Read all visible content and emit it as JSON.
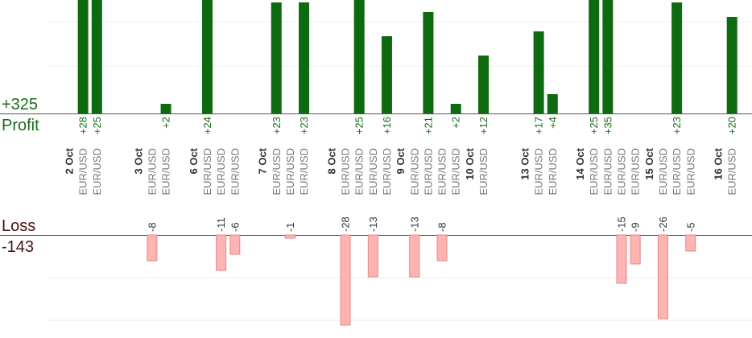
{
  "summary": {
    "profit_total": "+325",
    "profit_label": "Profit",
    "loss_label": "Loss",
    "loss_total": "-143"
  },
  "colors": {
    "profit": "#0e6a0e",
    "loss": "#ffb3b3",
    "profit_text": "#1a6b1a",
    "loss_text": "#4a1010"
  },
  "chart_data": {
    "type": "bar",
    "pair": "EUR/USD",
    "dates": [
      {
        "label": "2 Oct",
        "slot": 0
      },
      {
        "label": "3 Oct",
        "slot": 5
      },
      {
        "label": "6 Oct",
        "slot": 9
      },
      {
        "label": "7 Oct",
        "slot": 14
      },
      {
        "label": "8 Oct",
        "slot": 19
      },
      {
        "label": "9 Oct",
        "slot": 24
      },
      {
        "label": "10 Oct",
        "slot": 29
      },
      {
        "label": "13 Oct",
        "slot": 33
      },
      {
        "label": "14 Oct",
        "slot": 37
      },
      {
        "label": "15 Oct",
        "slot": 42
      },
      {
        "label": "16 Oct",
        "slot": 47
      }
    ],
    "trades": [
      {
        "slot": 1,
        "value": 28
      },
      {
        "slot": 2,
        "value": 25
      },
      {
        "slot": 6,
        "value": -8
      },
      {
        "slot": 7,
        "value": 2
      },
      {
        "slot": 10,
        "value": 24
      },
      {
        "slot": 11,
        "value": -11
      },
      {
        "slot": 12,
        "value": -6
      },
      {
        "slot": 15,
        "value": 23
      },
      {
        "slot": 16,
        "value": -1
      },
      {
        "slot": 17,
        "value": 23
      },
      {
        "slot": 20,
        "value": -28
      },
      {
        "slot": 21,
        "value": 25
      },
      {
        "slot": 22,
        "value": -13
      },
      {
        "slot": 23,
        "value": 16
      },
      {
        "slot": 25,
        "value": -13
      },
      {
        "slot": 26,
        "value": 21
      },
      {
        "slot": 27,
        "value": -8
      },
      {
        "slot": 28,
        "value": 2
      },
      {
        "slot": 30,
        "value": 12
      },
      {
        "slot": 34,
        "value": 17
      },
      {
        "slot": 35,
        "value": 4
      },
      {
        "slot": 38,
        "value": 25
      },
      {
        "slot": 39,
        "value": 35
      },
      {
        "slot": 40,
        "value": -15
      },
      {
        "slot": 41,
        "value": -9
      },
      {
        "slot": 43,
        "value": -26
      },
      {
        "slot": 44,
        "value": 23
      },
      {
        "slot": 45,
        "value": -5
      },
      {
        "slot": 48,
        "value": 20
      }
    ]
  }
}
